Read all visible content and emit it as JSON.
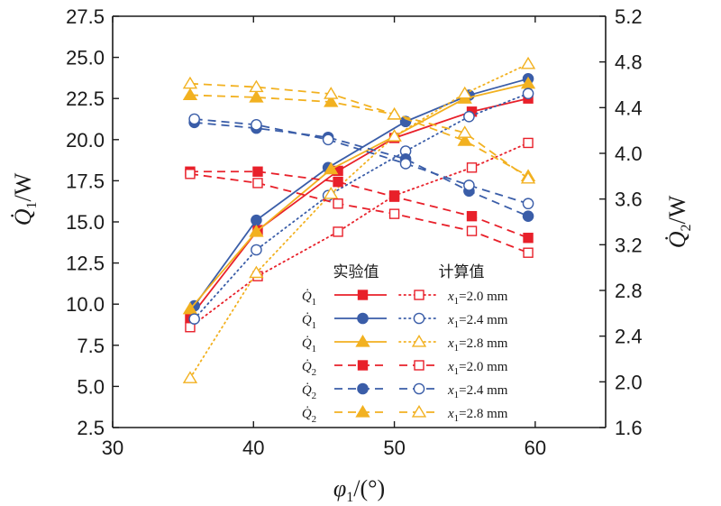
{
  "chart_data": {
    "type": "line",
    "xlabel": "φ1/(°)",
    "ylabel_left": "Q̇1/W",
    "ylabel_right": "Q̇2/W",
    "xlim": [
      30,
      65
    ],
    "ylim_left": [
      2.5,
      27.5
    ],
    "ylim_right": [
      1.6,
      5.2
    ],
    "x_ticks": [
      30,
      40,
      50,
      60
    ],
    "y_ticks_left": [
      "2.5",
      "5.0",
      "7.5",
      "10.0",
      "12.5",
      "15.0",
      "17.5",
      "20.0",
      "22.5",
      "25.0",
      "27.5"
    ],
    "y_ticks_right": [
      "1.6",
      "2.0",
      "2.4",
      "2.8",
      "3.2",
      "3.6",
      "4.0",
      "4.4",
      "4.8",
      "5.2"
    ],
    "legend": {
      "header_exp": "实验值",
      "header_calc": "计算值"
    },
    "series": [
      {
        "quantity": "Q1",
        "kind": "exp",
        "axis": "left",
        "color": "#e8202a",
        "marker": "square",
        "dash": "solid",
        "x1": "2.0 mm",
        "x": [
          35.5,
          40.3,
          46.0,
          50.0,
          55.5,
          59.5
        ],
        "y": [
          9.2,
          14.5,
          18.1,
          20.1,
          21.7,
          22.5
        ]
      },
      {
        "quantity": "Q1",
        "kind": "exp",
        "axis": "left",
        "color": "#3a5da8",
        "marker": "circle",
        "dash": "solid",
        "x1": "2.4 mm",
        "x": [
          35.8,
          40.2,
          45.3,
          50.8,
          55.3,
          59.5
        ],
        "y": [
          9.9,
          15.1,
          18.3,
          21.1,
          22.7,
          23.7
        ]
      },
      {
        "quantity": "Q1",
        "kind": "exp",
        "axis": "left",
        "color": "#f2b120",
        "marker": "triangle",
        "dash": "solid",
        "x1": "2.8 mm",
        "x": [
          35.5,
          40.2,
          45.5,
          50.0,
          55.0,
          59.5
        ],
        "y": [
          9.7,
          14.4,
          18.2,
          20.2,
          22.5,
          23.4
        ]
      },
      {
        "quantity": "Q1",
        "kind": "calc",
        "axis": "left",
        "color": "#e8202a",
        "marker": "square",
        "dash": "dot",
        "x1": "2.0 mm",
        "x": [
          35.5,
          40.3,
          46.0,
          50.0,
          55.5,
          59.5
        ],
        "y": [
          8.6,
          11.7,
          14.4,
          16.6,
          18.3,
          19.8
        ]
      },
      {
        "quantity": "Q1",
        "kind": "calc",
        "axis": "left",
        "color": "#3a5da8",
        "marker": "circle",
        "dash": "dot",
        "x1": "2.4 mm",
        "x": [
          35.8,
          40.2,
          45.3,
          50.8,
          55.3,
          59.5
        ],
        "y": [
          9.1,
          13.3,
          16.6,
          19.3,
          21.4,
          22.8
        ]
      },
      {
        "quantity": "Q1",
        "kind": "calc",
        "axis": "left",
        "color": "#f2b120",
        "marker": "triangle",
        "dash": "dot",
        "x1": "2.8 mm",
        "x": [
          35.5,
          40.2,
          45.5,
          50.0,
          55.0,
          59.5
        ],
        "y": [
          5.5,
          11.9,
          16.7,
          20.2,
          22.8,
          24.6
        ]
      },
      {
        "quantity": "Q2",
        "kind": "exp",
        "axis": "right",
        "color": "#e8202a",
        "marker": "square",
        "dash": "dash",
        "x1": "2.0 mm",
        "x": [
          35.5,
          40.3,
          46.0,
          50.0,
          55.5,
          59.5
        ],
        "y": [
          3.84,
          3.84,
          3.75,
          3.62,
          3.45,
          3.26
        ]
      },
      {
        "quantity": "Q2",
        "kind": "exp",
        "axis": "right",
        "color": "#3a5da8",
        "marker": "circle",
        "dash": "dash",
        "x1": "2.4 mm",
        "x": [
          35.8,
          40.2,
          45.3,
          50.8,
          55.3,
          59.5
        ],
        "y": [
          4.27,
          4.22,
          4.14,
          3.95,
          3.67,
          3.45
        ]
      },
      {
        "quantity": "Q2",
        "kind": "exp",
        "axis": "right",
        "color": "#f2b120",
        "marker": "triangle",
        "dash": "dash",
        "x1": "2.8 mm",
        "x": [
          35.5,
          40.2,
          45.5,
          50.0,
          55.0,
          59.5
        ],
        "y": [
          4.51,
          4.49,
          4.45,
          4.34,
          4.11,
          3.8
        ]
      },
      {
        "quantity": "Q2",
        "kind": "calc",
        "axis": "right",
        "color": "#e8202a",
        "marker": "square",
        "dash": "dash",
        "x1": "2.0 mm",
        "x": [
          35.5,
          40.3,
          46.0,
          50.0,
          55.5,
          59.5
        ],
        "y": [
          3.82,
          3.74,
          3.56,
          3.47,
          3.32,
          3.13
        ]
      },
      {
        "quantity": "Q2",
        "kind": "calc",
        "axis": "right",
        "color": "#3a5da8",
        "marker": "circle",
        "dash": "dash",
        "x1": "2.4 mm",
        "x": [
          35.8,
          40.2,
          45.3,
          50.8,
          55.3,
          59.5
        ],
        "y": [
          4.3,
          4.25,
          4.12,
          3.91,
          3.72,
          3.56
        ]
      },
      {
        "quantity": "Q2",
        "kind": "calc",
        "axis": "right",
        "color": "#f2b120",
        "marker": "triangle",
        "dash": "dash",
        "x1": "2.8 mm",
        "x": [
          35.5,
          40.2,
          45.5,
          50.0,
          55.0,
          59.5
        ],
        "y": [
          4.61,
          4.58,
          4.52,
          4.34,
          4.18,
          3.78
        ]
      }
    ]
  }
}
